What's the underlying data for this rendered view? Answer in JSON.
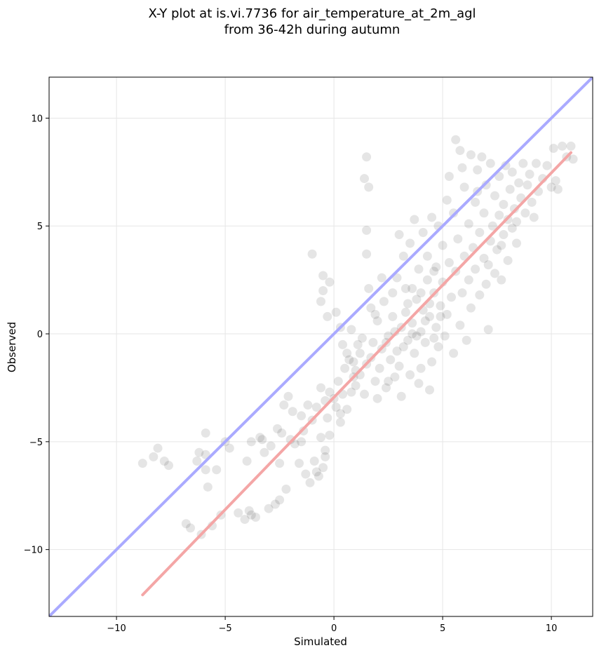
{
  "chart_data": {
    "type": "scatter",
    "title": [
      "X-Y plot at is.vi.7736 for air_temperature_at_2m_agl",
      "from 36-42h during autumn"
    ],
    "xlabel": "Simulated",
    "ylabel": "Observed",
    "xlim": [
      -13.1,
      11.9
    ],
    "ylim": [
      -13.1,
      11.9
    ],
    "xticks": [
      -10,
      -5,
      0,
      5,
      10
    ],
    "yticks": [
      -10,
      -5,
      0,
      5,
      10
    ],
    "xtick_labels": [
      "−10",
      "−5",
      "0",
      "5",
      "10"
    ],
    "ytick_labels": [
      "−10",
      "−5",
      "0",
      "5",
      "10"
    ],
    "grid": true,
    "colors": {
      "points": "#000000",
      "identity_line": "#aaaaff",
      "fit_line": "#f4a6a6"
    },
    "identity_line": {
      "x": [
        -13.1,
        11.9
      ],
      "y": [
        -13.1,
        11.9
      ]
    },
    "fit_line": {
      "x": [
        -8.8,
        10.9
      ],
      "y": [
        -12.1,
        8.4
      ]
    },
    "points": [
      [
        -8.8,
        -6.0
      ],
      [
        -8.3,
        -5.7
      ],
      [
        -8.1,
        -5.3
      ],
      [
        -7.8,
        -5.9
      ],
      [
        -7.6,
        -6.1
      ],
      [
        -6.8,
        -8.8
      ],
      [
        -6.6,
        -9.0
      ],
      [
        -6.3,
        -5.9
      ],
      [
        -6.2,
        -5.5
      ],
      [
        -6.1,
        -9.3
      ],
      [
        -5.9,
        -4.6
      ],
      [
        -5.9,
        -6.3
      ],
      [
        -5.8,
        -7.1
      ],
      [
        -5.9,
        -5.6
      ],
      [
        -5.6,
        -8.9
      ],
      [
        -5.4,
        -6.3
      ],
      [
        -5.2,
        -8.4
      ],
      [
        -5.0,
        -5.0
      ],
      [
        -4.8,
        -5.3
      ],
      [
        -4.4,
        -8.3
      ],
      [
        -4.1,
        -8.6
      ],
      [
        -4.0,
        -5.9
      ],
      [
        -3.9,
        -8.2
      ],
      [
        -3.8,
        -8.4
      ],
      [
        -3.6,
        -8.5
      ],
      [
        -3.8,
        -5.0
      ],
      [
        -3.4,
        -4.8
      ],
      [
        -3.2,
        -5.5
      ],
      [
        -3.0,
        -8.1
      ],
      [
        -2.9,
        -5.2
      ],
      [
        -2.7,
        -7.9
      ],
      [
        -2.5,
        -7.7
      ],
      [
        -2.5,
        -6.0
      ],
      [
        -2.4,
        -4.6
      ],
      [
        -2.3,
        -3.3
      ],
      [
        -2.1,
        -2.9
      ],
      [
        -2.0,
        -4.9
      ],
      [
        -2.2,
        -7.2
      ],
      [
        -1.8,
        -5.1
      ],
      [
        -1.6,
        -6.0
      ],
      [
        -1.5,
        -3.8
      ],
      [
        -1.4,
        -4.5
      ],
      [
        -1.3,
        -6.5
      ],
      [
        -1.2,
        -3.3
      ],
      [
        -1.1,
        -6.9
      ],
      [
        -1.0,
        -4.0
      ],
      [
        -0.9,
        -5.9
      ],
      [
        -0.8,
        -3.4
      ],
      [
        -0.7,
        -6.6
      ],
      [
        -0.6,
        -4.8
      ],
      [
        -0.5,
        -6.2
      ],
      [
        -0.6,
        -2.5
      ],
      [
        -0.4,
        -5.4
      ],
      [
        -0.4,
        -3.1
      ],
      [
        -0.3,
        -3.9
      ],
      [
        -0.2,
        -2.7
      ],
      [
        0.0,
        -3.0
      ],
      [
        0.1,
        -3.4
      ],
      [
        0.2,
        -2.2
      ],
      [
        0.3,
        -4.1
      ],
      [
        0.4,
        -2.8
      ],
      [
        0.6,
        -3.5
      ],
      [
        0.7,
        -1.2
      ],
      [
        -1.0,
        3.7
      ],
      [
        -0.5,
        2.7
      ],
      [
        -0.6,
        1.5
      ],
      [
        -0.5,
        2.0
      ],
      [
        -0.2,
        2.4
      ],
      [
        -0.3,
        0.8
      ],
      [
        0.1,
        1.0
      ],
      [
        0.3,
        0.3
      ],
      [
        0.4,
        -0.5
      ],
      [
        0.5,
        -1.6
      ],
      [
        0.6,
        -0.9
      ],
      [
        0.8,
        0.2
      ],
      [
        0.9,
        -1.3
      ],
      [
        1.0,
        -2.4
      ],
      [
        1.1,
        -0.5
      ],
      [
        1.2,
        -1.9
      ],
      [
        1.3,
        -0.2
      ],
      [
        1.4,
        -2.8
      ],
      [
        1.4,
        7.2
      ],
      [
        1.5,
        8.2
      ],
      [
        1.5,
        4.8
      ],
      [
        1.6,
        6.8
      ],
      [
        1.5,
        3.7
      ],
      [
        1.6,
        2.1
      ],
      [
        1.7,
        -1.1
      ],
      [
        1.7,
        1.2
      ],
      [
        1.8,
        -0.4
      ],
      [
        1.9,
        -2.2
      ],
      [
        2.0,
        -3.0
      ],
      [
        2.0,
        0.6
      ],
      [
        2.1,
        -1.6
      ],
      [
        2.2,
        -0.7
      ],
      [
        2.3,
        1.5
      ],
      [
        2.4,
        -2.5
      ],
      [
        2.5,
        -0.1
      ],
      [
        2.6,
        -1.2
      ],
      [
        2.7,
        0.8
      ],
      [
        2.8,
        -2.0
      ],
      [
        2.9,
        -0.8
      ],
      [
        2.9,
        2.6
      ],
      [
        3.0,
        -1.5
      ],
      [
        3.1,
        0.3
      ],
      [
        3.1,
        -2.9
      ],
      [
        3.2,
        3.6
      ],
      [
        3.3,
        1.0
      ],
      [
        3.4,
        -0.3
      ],
      [
        3.5,
        -1.9
      ],
      [
        3.5,
        4.2
      ],
      [
        3.6,
        0.5
      ],
      [
        3.6,
        2.1
      ],
      [
        3.7,
        -0.9
      ],
      [
        3.8,
        1.6
      ],
      [
        3.9,
        3.0
      ],
      [
        3.9,
        -2.3
      ],
      [
        4.0,
        0.1
      ],
      [
        4.1,
        4.7
      ],
      [
        4.1,
        1.1
      ],
      [
        4.2,
        -0.4
      ],
      [
        4.3,
        2.5
      ],
      [
        4.3,
        3.6
      ],
      [
        4.4,
        0.8
      ],
      [
        4.5,
        5.4
      ],
      [
        4.5,
        -1.3
      ],
      [
        4.6,
        1.9
      ],
      [
        4.7,
        0.3
      ],
      [
        4.7,
        3.1
      ],
      [
        4.8,
        5.0
      ],
      [
        4.8,
        -0.6
      ],
      [
        4.9,
        1.3
      ],
      [
        5.0,
        2.4
      ],
      [
        5.0,
        4.1
      ],
      [
        5.1,
        -0.1
      ],
      [
        5.2,
        6.2
      ],
      [
        5.2,
        0.9
      ],
      [
        5.3,
        3.3
      ],
      [
        5.4,
        1.7
      ],
      [
        5.5,
        5.6
      ],
      [
        5.5,
        -0.9
      ],
      [
        5.6,
        2.9
      ],
      [
        5.6,
        9.0
      ],
      [
        5.7,
        4.4
      ],
      [
        5.8,
        0.4
      ],
      [
        5.8,
        8.5
      ],
      [
        5.9,
        1.9
      ],
      [
        6.0,
        6.8
      ],
      [
        6.0,
        3.6
      ],
      [
        6.1,
        -0.3
      ],
      [
        6.2,
        5.1
      ],
      [
        6.2,
        2.5
      ],
      [
        6.3,
        8.3
      ],
      [
        6.3,
        1.2
      ],
      [
        6.4,
        4.0
      ],
      [
        6.5,
        6.1
      ],
      [
        6.5,
        3.0
      ],
      [
        6.6,
        7.6
      ],
      [
        6.7,
        1.8
      ],
      [
        6.7,
        4.7
      ],
      [
        6.8,
        8.2
      ],
      [
        6.9,
        3.5
      ],
      [
        6.9,
        5.6
      ],
      [
        7.0,
        2.3
      ],
      [
        7.0,
        6.9
      ],
      [
        7.1,
        0.2
      ],
      [
        7.2,
        4.3
      ],
      [
        7.2,
        7.9
      ],
      [
        7.3,
        5.0
      ],
      [
        7.4,
        2.8
      ],
      [
        7.4,
        6.4
      ],
      [
        7.5,
        3.9
      ],
      [
        7.6,
        7.3
      ],
      [
        7.6,
        5.5
      ],
      [
        7.7,
        2.5
      ],
      [
        7.8,
        6.0
      ],
      [
        7.8,
        4.6
      ],
      [
        7.9,
        7.8
      ],
      [
        8.0,
        5.3
      ],
      [
        8.0,
        3.4
      ],
      [
        8.1,
        6.7
      ],
      [
        8.2,
        4.9
      ],
      [
        8.2,
        7.5
      ],
      [
        8.3,
        5.8
      ],
      [
        8.4,
        4.2
      ],
      [
        8.5,
        7.0
      ],
      [
        8.6,
        6.3
      ],
      [
        8.7,
        7.9
      ],
      [
        8.8,
        5.6
      ],
      [
        8.9,
        6.9
      ],
      [
        9.0,
        7.4
      ],
      [
        9.1,
        6.1
      ],
      [
        9.3,
        7.9
      ],
      [
        9.4,
        6.6
      ],
      [
        9.6,
        7.2
      ],
      [
        9.8,
        7.8
      ],
      [
        10.0,
        6.8
      ],
      [
        10.1,
        8.6
      ],
      [
        10.2,
        7.1
      ],
      [
        10.3,
        6.7
      ],
      [
        10.5,
        8.7
      ],
      [
        10.7,
        8.2
      ],
      [
        10.9,
        8.7
      ],
      [
        11.0,
        8.1
      ],
      [
        2.2,
        2.6
      ],
      [
        2.5,
        -2.2
      ],
      [
        3.0,
        4.6
      ],
      [
        3.7,
        5.3
      ],
      [
        4.0,
        -1.6
      ],
      [
        4.4,
        -2.6
      ],
      [
        1.0,
        -1.7
      ],
      [
        0.8,
        -2.7
      ],
      [
        0.3,
        -3.7
      ],
      [
        -0.2,
        -4.7
      ],
      [
        -0.4,
        -5.7
      ],
      [
        -0.8,
        -6.4
      ],
      [
        -1.5,
        -5.0
      ],
      [
        -1.9,
        -3.6
      ],
      [
        -2.6,
        -4.4
      ],
      [
        -3.3,
        -4.9
      ],
      [
        1.9,
        0.9
      ],
      [
        2.7,
        1.9
      ],
      [
        3.3,
        2.1
      ],
      [
        4.6,
        -0.2
      ],
      [
        5.3,
        7.3
      ],
      [
        5.9,
        7.7
      ],
      [
        6.6,
        6.6
      ],
      [
        7.1,
        3.2
      ],
      [
        7.7,
        4.1
      ],
      [
        8.4,
        5.2
      ],
      [
        9.2,
        5.4
      ],
      [
        3.4,
        1.4
      ],
      [
        3.8,
        -0.1
      ],
      [
        4.2,
        0.6
      ],
      [
        4.4,
        1.4
      ],
      [
        4.9,
        0.8
      ],
      [
        2.8,
        0.1
      ],
      [
        2.4,
        -0.4
      ],
      [
        3.6,
        0.0
      ],
      [
        4.0,
        1.9
      ],
      [
        4.6,
        2.9
      ],
      [
        3.2,
        -0.6
      ],
      [
        1.5,
        -1.4
      ],
      [
        1.2,
        -0.9
      ],
      [
        0.9,
        -2.0
      ]
    ]
  }
}
